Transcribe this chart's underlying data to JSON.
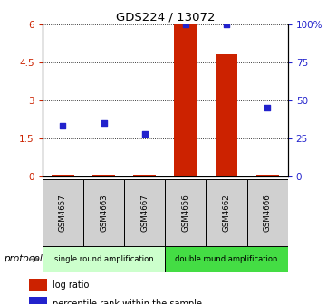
{
  "title": "GDS224 / 13072",
  "samples": [
    "GSM4657",
    "GSM4663",
    "GSM4667",
    "GSM4656",
    "GSM4662",
    "GSM4666"
  ],
  "log_ratio": [
    0.07,
    0.07,
    0.07,
    6.0,
    4.8,
    0.07
  ],
  "percentile": [
    33,
    35,
    28,
    100,
    100,
    45
  ],
  "left_yticks": [
    0,
    1.5,
    3,
    4.5,
    6
  ],
  "right_yticks": [
    0,
    25,
    50,
    75,
    100
  ],
  "ylim_left": [
    0,
    6
  ],
  "ylim_right": [
    0,
    100
  ],
  "group_labels": [
    "single round amplification",
    "double round amplification"
  ],
  "group_colors": [
    "#ccffcc",
    "#44dd44"
  ],
  "bar_color": "#cc2200",
  "point_color": "#2222cc",
  "bar_width": 0.55,
  "legend_items": [
    {
      "label": "log ratio",
      "color": "#cc2200"
    },
    {
      "label": "percentile rank within the sample",
      "color": "#2222cc"
    }
  ]
}
